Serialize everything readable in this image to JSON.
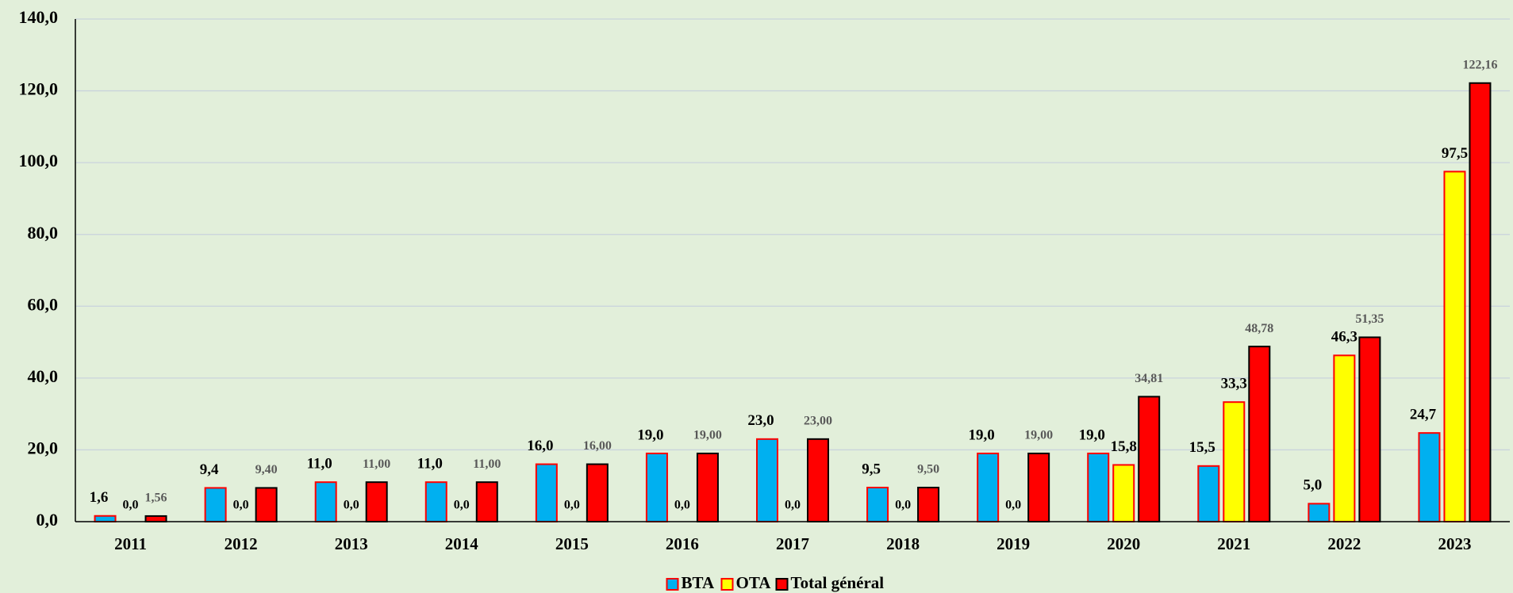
{
  "chart_data": {
    "type": "bar",
    "categories": [
      "2011",
      "2012",
      "2013",
      "2014",
      "2015",
      "2016",
      "2017",
      "2018",
      "2019",
      "2020",
      "2021",
      "2022",
      "2023"
    ],
    "series": [
      {
        "name": "BTA",
        "color": "#00B0F0",
        "border": "#FF0000",
        "label_color": "#000000",
        "values": [
          1.6,
          9.4,
          11,
          11,
          16,
          19,
          23,
          9.5,
          19,
          19,
          15.5,
          5,
          24.7
        ],
        "value_labels": [
          "1,6",
          "9,4",
          "11,0",
          "11,0",
          "16,0",
          "19,0",
          "23,0",
          "9,5",
          "19,0",
          "19,0",
          "15,5",
          "5,0",
          "24,7"
        ]
      },
      {
        "name": "OTA",
        "color": "#FFFF00",
        "border": "#FF0000",
        "label_color": "#000000",
        "values": [
          0,
          0,
          0,
          0,
          0,
          0,
          0,
          0,
          0,
          15.8,
          33.3,
          46.3,
          97.5
        ],
        "value_labels": [
          "0,0",
          "0,0",
          "0,0",
          "0,0",
          "0,0",
          "0,0",
          "0,0",
          "0,0",
          "0,0",
          "15,8",
          "33,3",
          "46,3",
          "97,5"
        ]
      },
      {
        "name": "Total général",
        "color": "#FF0000",
        "border": "#000000",
        "label_color": "#595959",
        "values": [
          1.56,
          9.4,
          11,
          11,
          16,
          19,
          23,
          9.5,
          19,
          34.81,
          48.78,
          51.35,
          122.16
        ],
        "value_labels": [
          "1,56",
          "9,40",
          "11,00",
          "11,00",
          "16,00",
          "19,00",
          "23,00",
          "9,50",
          "19,00",
          "34,81",
          "48,78",
          "51,35",
          "122,16"
        ]
      }
    ],
    "ylim": [
      0,
      140
    ],
    "yticks": [
      {
        "value": 0,
        "label": "0,0"
      },
      {
        "value": 20,
        "label": "20,0"
      },
      {
        "value": 40,
        "label": "40,0"
      },
      {
        "value": 60,
        "label": "60,0"
      },
      {
        "value": 80,
        "label": "80,0"
      },
      {
        "value": 100,
        "label": "100,0"
      },
      {
        "value": 120,
        "label": "120,0"
      },
      {
        "value": 140,
        "label": "140,0"
      }
    ],
    "grid": true,
    "legend": "bottom"
  }
}
